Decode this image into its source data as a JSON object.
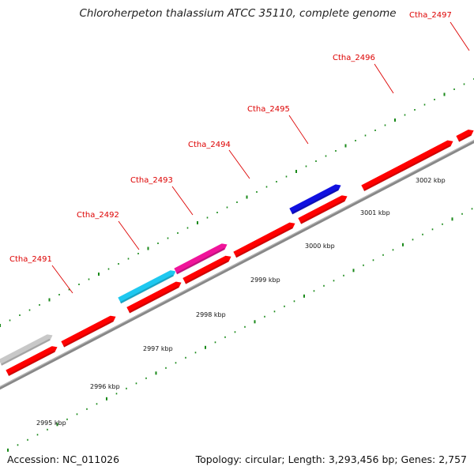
{
  "title": "Chloroherpeton thalassium ATCC 35110, complete genome",
  "footer": {
    "accession": "Accession: NC_011026",
    "stats": "Topology: circular; Length: 3,293,456 bp; Genes: 2,757"
  },
  "colors": {
    "gene_red": "#ff0000",
    "gene_cyan": "#1ec8f0",
    "gene_magenta": "#f0149a",
    "gene_blue": "#1010e0",
    "gene_gray": "#c8c8c8",
    "backbone": "#888888",
    "tick": "#1a8a1a",
    "label": "#dd0000"
  },
  "gene_labels": [
    "Ctha_2491",
    "Ctha_2492",
    "Ctha_2493",
    "Ctha_2494",
    "Ctha_2495",
    "Ctha_2496",
    "Ctha_2497"
  ],
  "kbp_labels": [
    "2995 kbp",
    "2996 kbp",
    "2997 kbp",
    "2998 kbp",
    "2999 kbp",
    "3000 kbp",
    "3001 kbp",
    "3002 kbp"
  ],
  "strands": [
    "reverse",
    "forward"
  ],
  "genes": [
    {
      "strand": "reverse",
      "color": "gene_gray"
    },
    {
      "strand": "forward",
      "color": "gene_red"
    },
    {
      "strand": "forward",
      "color": "gene_red"
    },
    {
      "strand": "reverse",
      "color": "gene_cyan",
      "label": "Ctha_2492"
    },
    {
      "strand": "forward",
      "color": "gene_red"
    },
    {
      "strand": "reverse",
      "color": "gene_magenta",
      "label": "Ctha_2493"
    },
    {
      "strand": "forward",
      "color": "gene_red"
    },
    {
      "strand": "forward",
      "color": "gene_red"
    },
    {
      "strand": "forward",
      "color": "gene_red"
    },
    {
      "strand": "reverse",
      "color": "gene_blue",
      "label": "Ctha_2495"
    },
    {
      "strand": "forward",
      "color": "gene_red"
    },
    {
      "strand": "forward",
      "color": "gene_red"
    }
  ]
}
